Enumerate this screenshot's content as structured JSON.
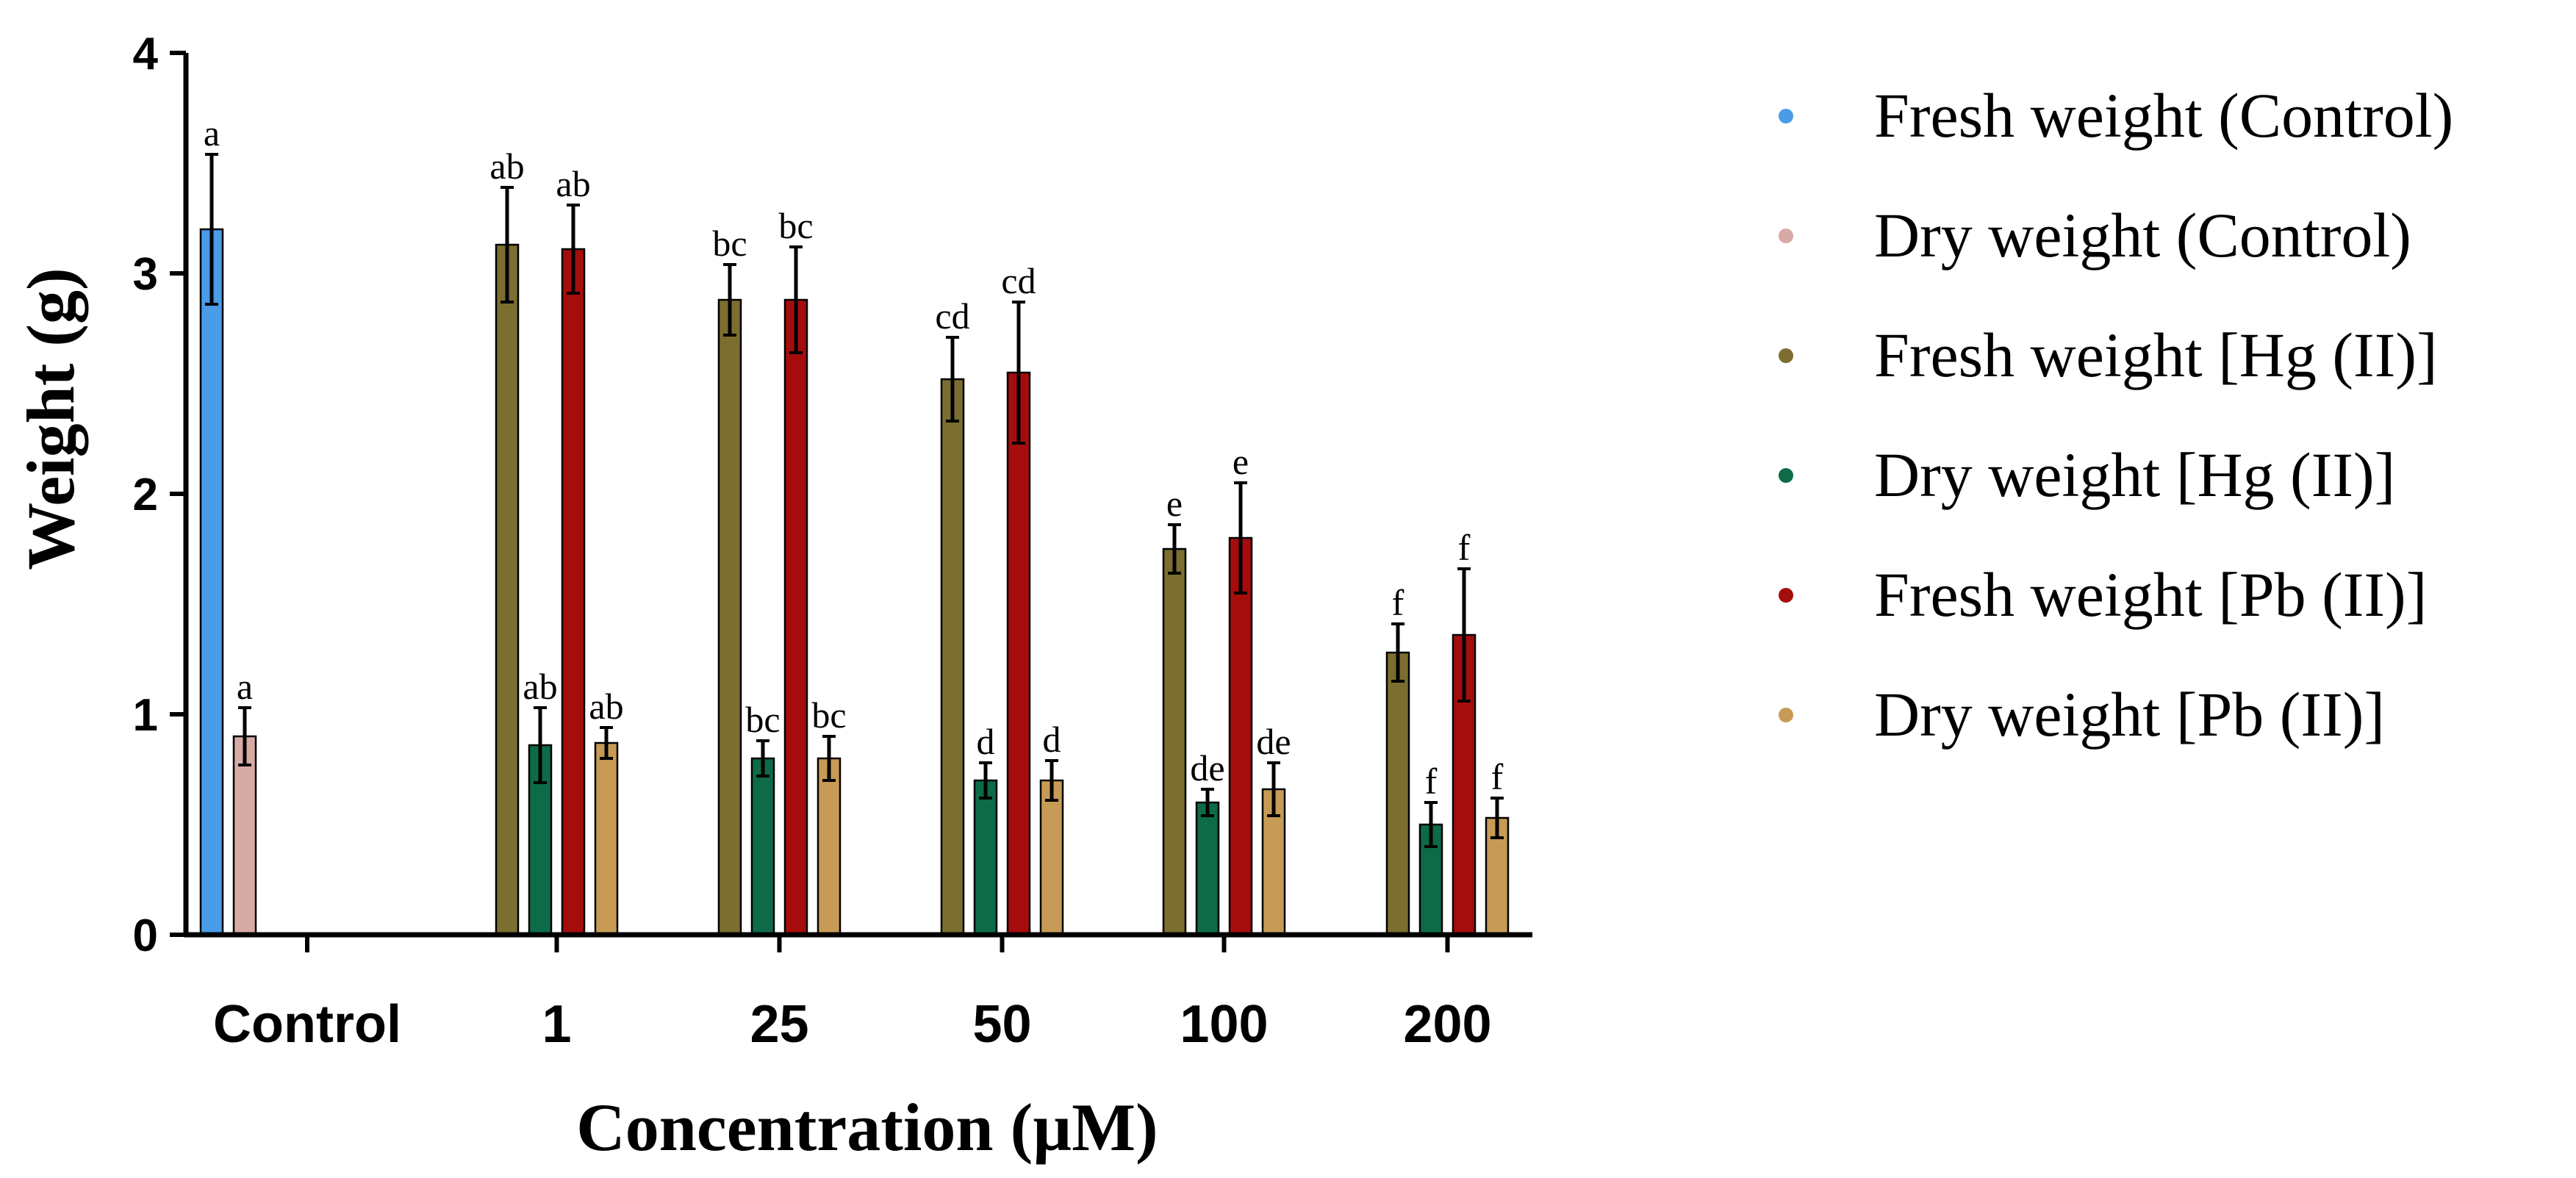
{
  "chart_data": {
    "type": "bar",
    "xlabel": "Concentration (µM)",
    "ylabel": "Weight (g)",
    "ylim": [
      0,
      4
    ],
    "yticks": [
      "0",
      "1",
      "2",
      "3",
      "4"
    ],
    "categories": [
      "Control",
      "1",
      "25",
      "50",
      "100",
      "200"
    ],
    "legend_position": "right",
    "series": [
      {
        "name": "Fresh weight (Control)",
        "color": "#4a9be8",
        "values": [
          3.2,
          null,
          null,
          null,
          null,
          null
        ],
        "errors": [
          0.34,
          null,
          null,
          null,
          null,
          null
        ],
        "labels": [
          "a",
          null,
          null,
          null,
          null,
          null
        ]
      },
      {
        "name": "Dry weight (Control)",
        "color": "#d8aaa5",
        "values": [
          0.9,
          null,
          null,
          null,
          null,
          null
        ],
        "errors": [
          0.13,
          null,
          null,
          null,
          null,
          null
        ],
        "labels": [
          "a",
          null,
          null,
          null,
          null,
          null
        ]
      },
      {
        "name": "Fresh weight [Hg (II)]",
        "color": "#7b6e30",
        "values": [
          null,
          3.13,
          2.88,
          2.52,
          1.75,
          1.28
        ],
        "errors": [
          null,
          0.26,
          0.16,
          0.19,
          0.11,
          0.13
        ],
        "labels": [
          null,
          "ab",
          "bc",
          "cd",
          "e",
          "f"
        ]
      },
      {
        "name": "Dry weight [Hg (II)]",
        "color": "#0d6b47",
        "values": [
          null,
          0.86,
          0.8,
          0.7,
          0.6,
          0.5
        ],
        "errors": [
          null,
          0.17,
          0.08,
          0.08,
          0.06,
          0.1
        ],
        "labels": [
          null,
          "ab",
          "bc",
          "d",
          "de",
          "f"
        ]
      },
      {
        "name": "Fresh weight [Pb (II)]",
        "color": "#a50d0d",
        "values": [
          null,
          3.11,
          2.88,
          2.55,
          1.8,
          1.36
        ],
        "errors": [
          null,
          0.2,
          0.24,
          0.32,
          0.25,
          0.3
        ],
        "labels": [
          null,
          "ab",
          "bc",
          "cd",
          "e",
          "f"
        ]
      },
      {
        "name": "Dry weight [Pb (II)]",
        "color": "#c79b56",
        "values": [
          null,
          0.87,
          0.8,
          0.7,
          0.66,
          0.53
        ],
        "errors": [
          null,
          0.07,
          0.1,
          0.09,
          0.12,
          0.09
        ],
        "labels": [
          null,
          "ab",
          "bc",
          "d",
          "de",
          "f"
        ]
      }
    ]
  }
}
